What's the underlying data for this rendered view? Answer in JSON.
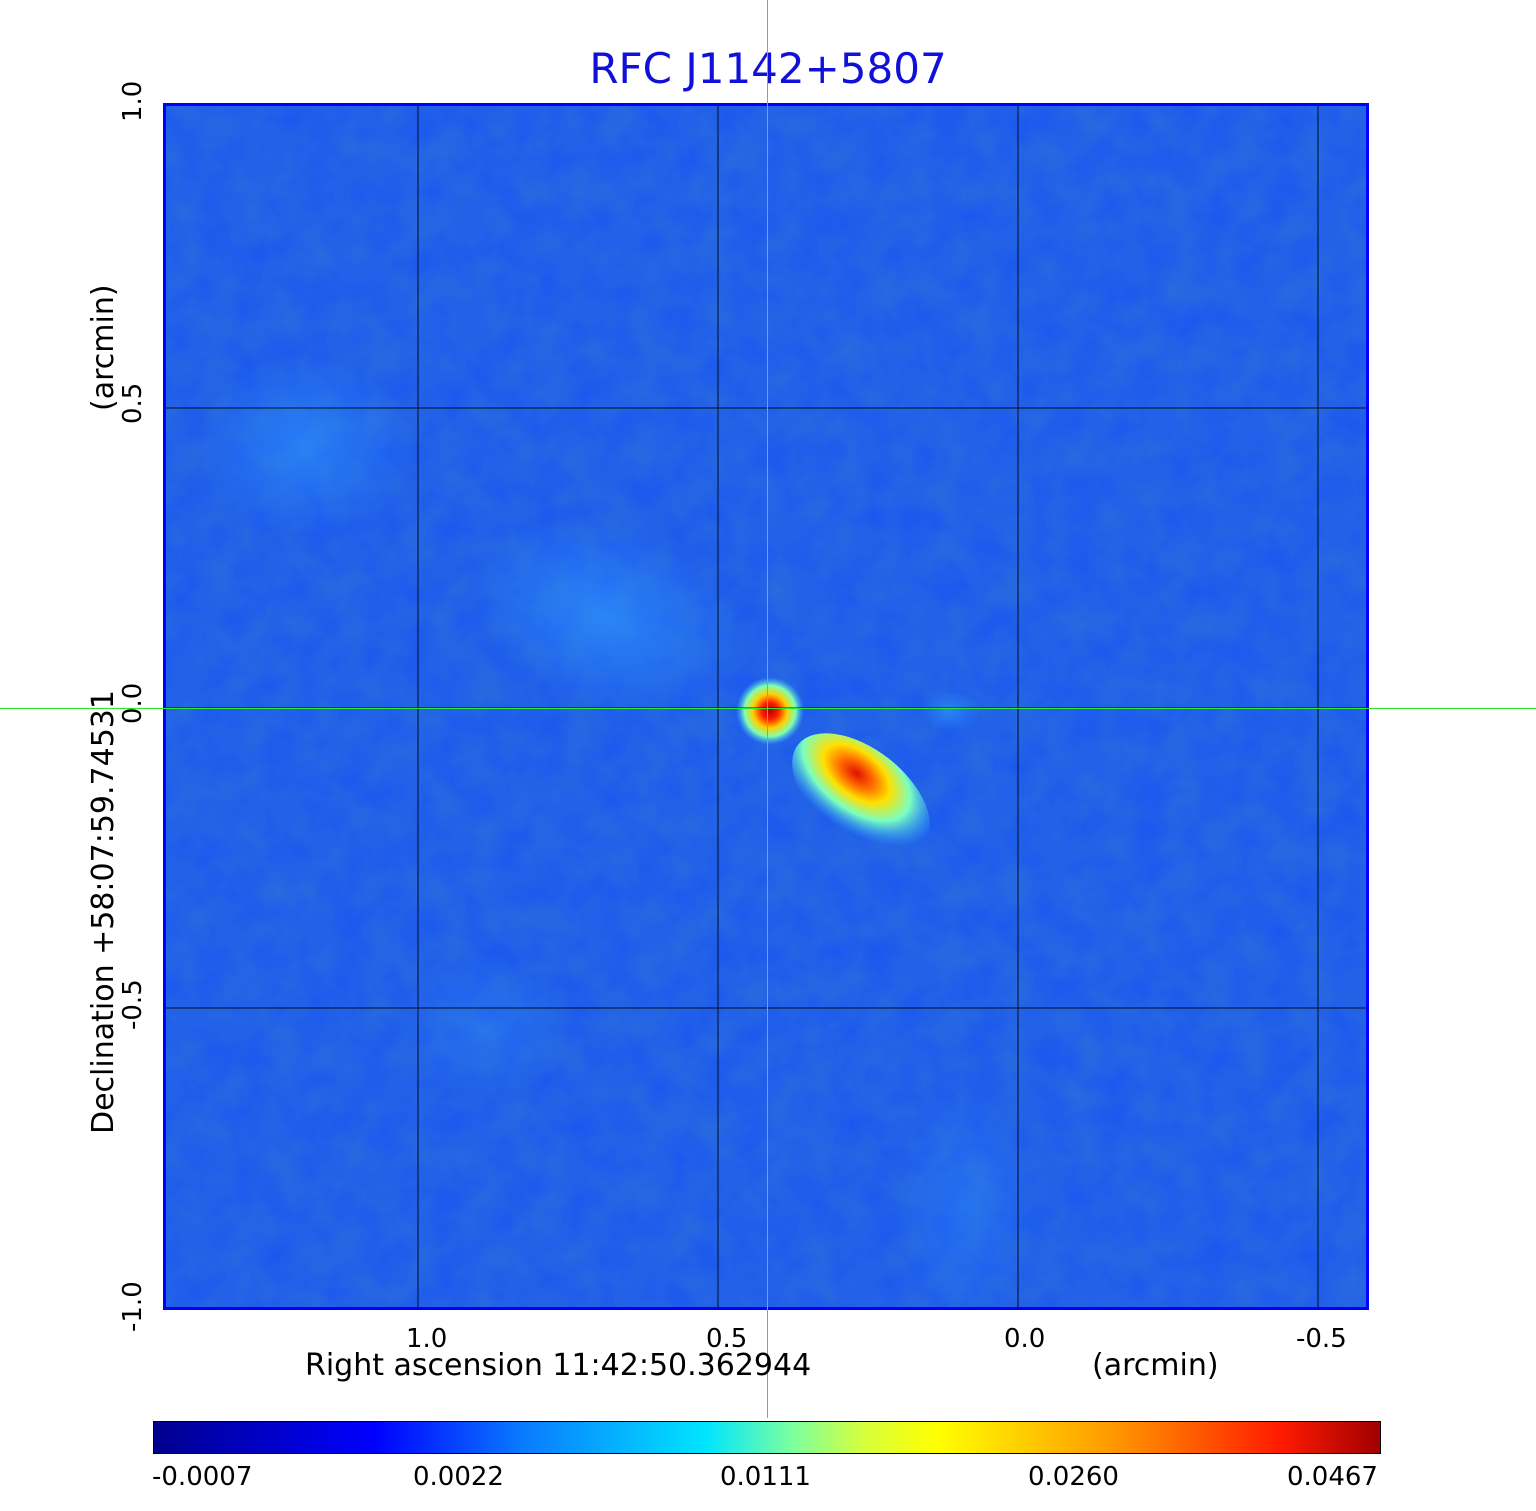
{
  "title": "RFC J1142+5807",
  "x_axis": {
    "label": "Right ascension  11:42:50.362944",
    "unit": "(arcmin)",
    "ticks": [
      "1.0",
      "0.5",
      "0.0",
      "-0.5"
    ]
  },
  "y_axis": {
    "label": "Declination  +58:07:59.74531",
    "unit": "(arcmin)",
    "ticks": [
      "1.0",
      "0.5",
      "0.0",
      "-0.5",
      "-1.0"
    ]
  },
  "colorbar": {
    "ticks": [
      "-0.0007",
      "0.0022",
      "0.0111",
      "0.0260",
      "0.0467"
    ],
    "colormap": "jet"
  },
  "colors": {
    "title": "#1010d8",
    "frame": "#0000ff",
    "crosshair": "#2ee62e",
    "background_map": "#1a56f2"
  }
}
